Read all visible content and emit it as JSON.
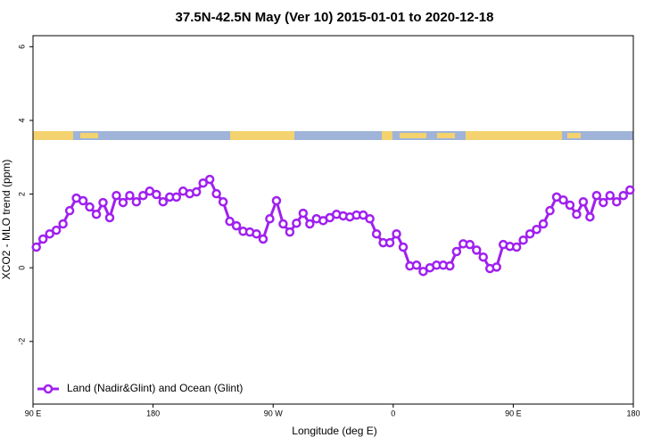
{
  "chart_data": {
    "type": "line",
    "title": "37.5N-42.5N May (Ver 10)   2015-01-01 to 2020-12-18",
    "x_label": "Longitude (deg E)",
    "y_label": "XCO2 - MLO trend (ppm)",
    "xlim": [
      90,
      540
    ],
    "ylim": [
      -3.7,
      6.3
    ],
    "xticks": [
      {
        "value": 90,
        "label": "90 E"
      },
      180,
      {
        "value": 270,
        "label": "90 W"
      },
      {
        "value": 360,
        "label": "0"
      },
      {
        "value": 450,
        "label": "90 E"
      },
      {
        "value": 540,
        "label": "180"
      }
    ],
    "yticks": [
      -2,
      0,
      2,
      4,
      6
    ],
    "legend": "bottom-left",
    "x": [
      92.5,
      97.5,
      102.5,
      107.5,
      112.5,
      117.5,
      122.5,
      127.5,
      132.5,
      137.5,
      142.5,
      147.5,
      152.5,
      157.5,
      162.5,
      167.5,
      172.5,
      177.5,
      182.5,
      187.5,
      192.5,
      197.5,
      202.5,
      207.5,
      212.5,
      217.5,
      222.5,
      227.5,
      232.5,
      237.5,
      242.5,
      247.5,
      252.5,
      257.5,
      262.5,
      267.5,
      272.5,
      277.5,
      282.5,
      287.5,
      292.5,
      297.5,
      302.5,
      307.5,
      312.5,
      317.5,
      322.5,
      327.5,
      332.5,
      337.5,
      342.5,
      347.5,
      352.5,
      357.5,
      362.5,
      367.5,
      372.5,
      377.5,
      382.5,
      387.5,
      392.5,
      397.5,
      402.5,
      407.5,
      412.5,
      417.5,
      422.5,
      427.5,
      432.5,
      437.5,
      442.5,
      447.5,
      452.5,
      457.5,
      462.5,
      467.5,
      472.5,
      477.5,
      482.5,
      487.5,
      492.5,
      497.5,
      502.5,
      507.5,
      512.5,
      517.5,
      522.5,
      527.5,
      532.5,
      537.5
    ],
    "series": [
      {
        "name": "Land (Nadir&Glint) and Ocean (Glint)",
        "color": "#a020f0",
        "values": [
          0.56,
          0.78,
          0.92,
          1.02,
          1.19,
          1.55,
          1.89,
          1.82,
          1.65,
          1.45,
          1.77,
          1.36,
          1.96,
          1.77,
          1.96,
          1.79,
          1.96,
          2.08,
          1.99,
          1.79,
          1.92,
          1.92,
          2.08,
          2.01,
          2.06,
          2.3,
          2.4,
          2.01,
          1.79,
          1.26,
          1.14,
          0.99,
          0.97,
          0.92,
          0.78,
          1.33,
          1.82,
          1.19,
          0.97,
          1.21,
          1.48,
          1.19,
          1.33,
          1.28,
          1.36,
          1.45,
          1.41,
          1.38,
          1.43,
          1.43,
          1.33,
          0.92,
          0.68,
          0.68,
          0.92,
          0.56,
          0.05,
          0.07,
          -0.1,
          0,
          0.07,
          0.07,
          0.05,
          0.44,
          0.65,
          0.63,
          0.48,
          0.29,
          -0.02,
          0.02,
          0.63,
          0.58,
          0.56,
          0.75,
          0.92,
          1.04,
          1.19,
          1.55,
          1.92,
          1.84,
          1.7,
          1.45,
          1.79,
          1.38,
          1.96,
          1.77,
          1.96,
          1.79,
          1.96,
          2.11
        ]
      }
    ]
  }
}
